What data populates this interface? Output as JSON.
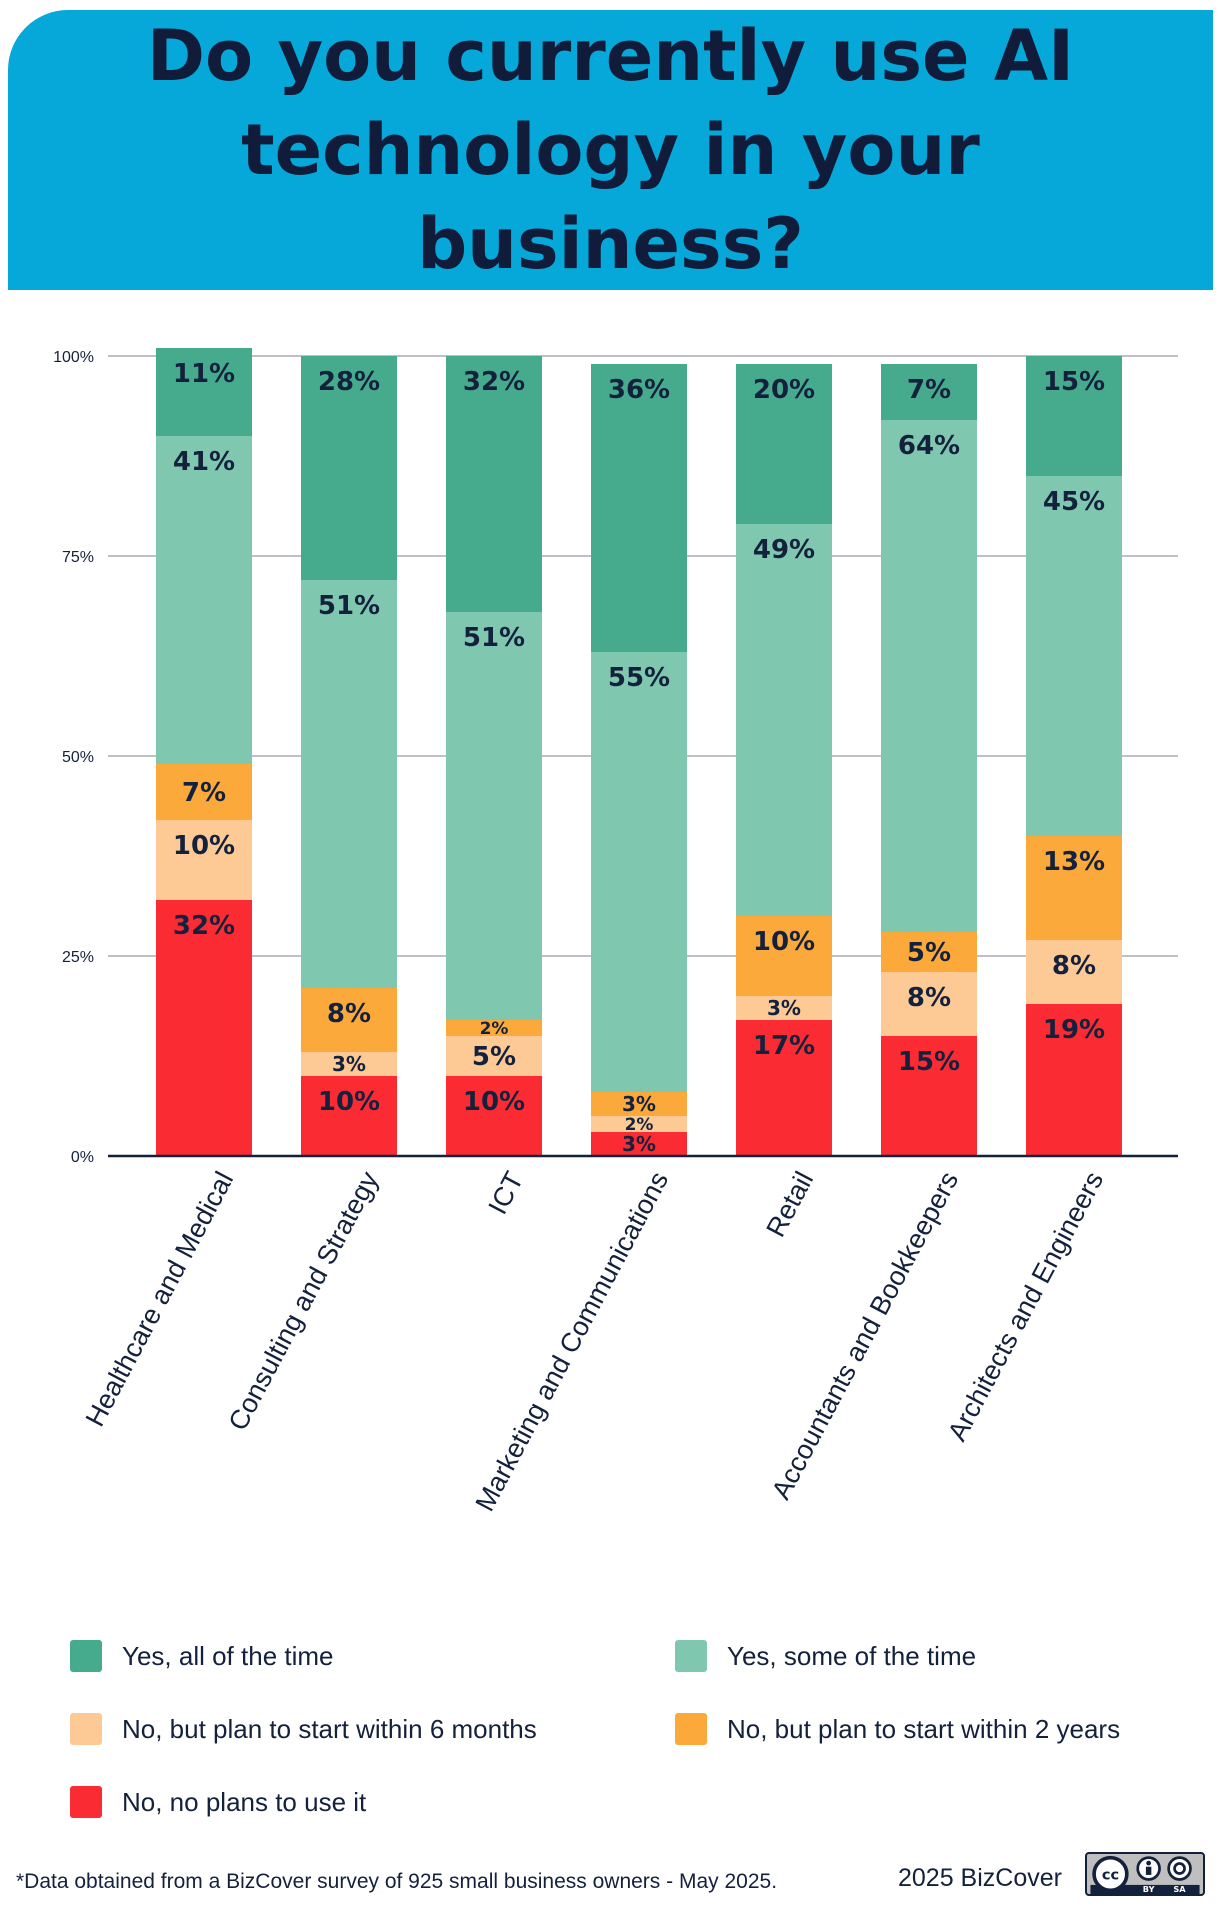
{
  "header": {
    "title": "Do you currently use AI technology in your business?"
  },
  "colors": {
    "header_bg": "#05a8d8",
    "yes_all": "#46ab8c",
    "yes_some": "#80c7b0",
    "plan_6m": "#fdc995",
    "plan_2y": "#fba93a",
    "no_plans": "#fb2b33"
  },
  "chart_data": {
    "type": "bar",
    "stacked": true,
    "ylim": [
      0,
      100
    ],
    "yticks": [
      "0%",
      "25%",
      "50%",
      "75%",
      "100%"
    ],
    "grid": true,
    "categories": [
      "Healthcare and Medical",
      "Consulting and Strategy",
      "ICT",
      "Marketing and Communications",
      "Retail",
      "Accountants and Bookkeepers",
      "Architects and Engineers"
    ],
    "series": [
      {
        "name": "No, no plans to use it",
        "color": "#fb2b33",
        "values": [
          32,
          10,
          10,
          3,
          17,
          15,
          19
        ]
      },
      {
        "name": "No, but plan to start within 6 months",
        "color": "#fdc995",
        "values": [
          10,
          3,
          5,
          2,
          3,
          8,
          8
        ]
      },
      {
        "name": "No, but plan to start within 2 years",
        "color": "#fba93a",
        "values": [
          7,
          8,
          2,
          3,
          10,
          5,
          13
        ]
      },
      {
        "name": "Yes, some of the time",
        "color": "#80c7b0",
        "values": [
          41,
          51,
          51,
          55,
          49,
          64,
          45
        ]
      },
      {
        "name": "Yes, all of the time",
        "color": "#46ab8c",
        "values": [
          11,
          28,
          32,
          36,
          20,
          7,
          15
        ]
      }
    ]
  },
  "legend": {
    "items": [
      {
        "label": "Yes, all of the time",
        "color": "#46ab8c"
      },
      {
        "label": "Yes, some of the time",
        "color": "#80c7b0"
      },
      {
        "label": "No, but plan to start within 6 months",
        "color": "#fdc995"
      },
      {
        "label": "No, but plan to start within 2 years",
        "color": "#fba93a"
      },
      {
        "label": "No, no plans to use it",
        "color": "#fb2b33"
      }
    ]
  },
  "footer": {
    "note": "*Data obtained from a BizCover survey of 925 small business owners - May 2025.",
    "credit": "2025 BizCover",
    "license_badge": [
      "BY",
      "SA"
    ]
  }
}
